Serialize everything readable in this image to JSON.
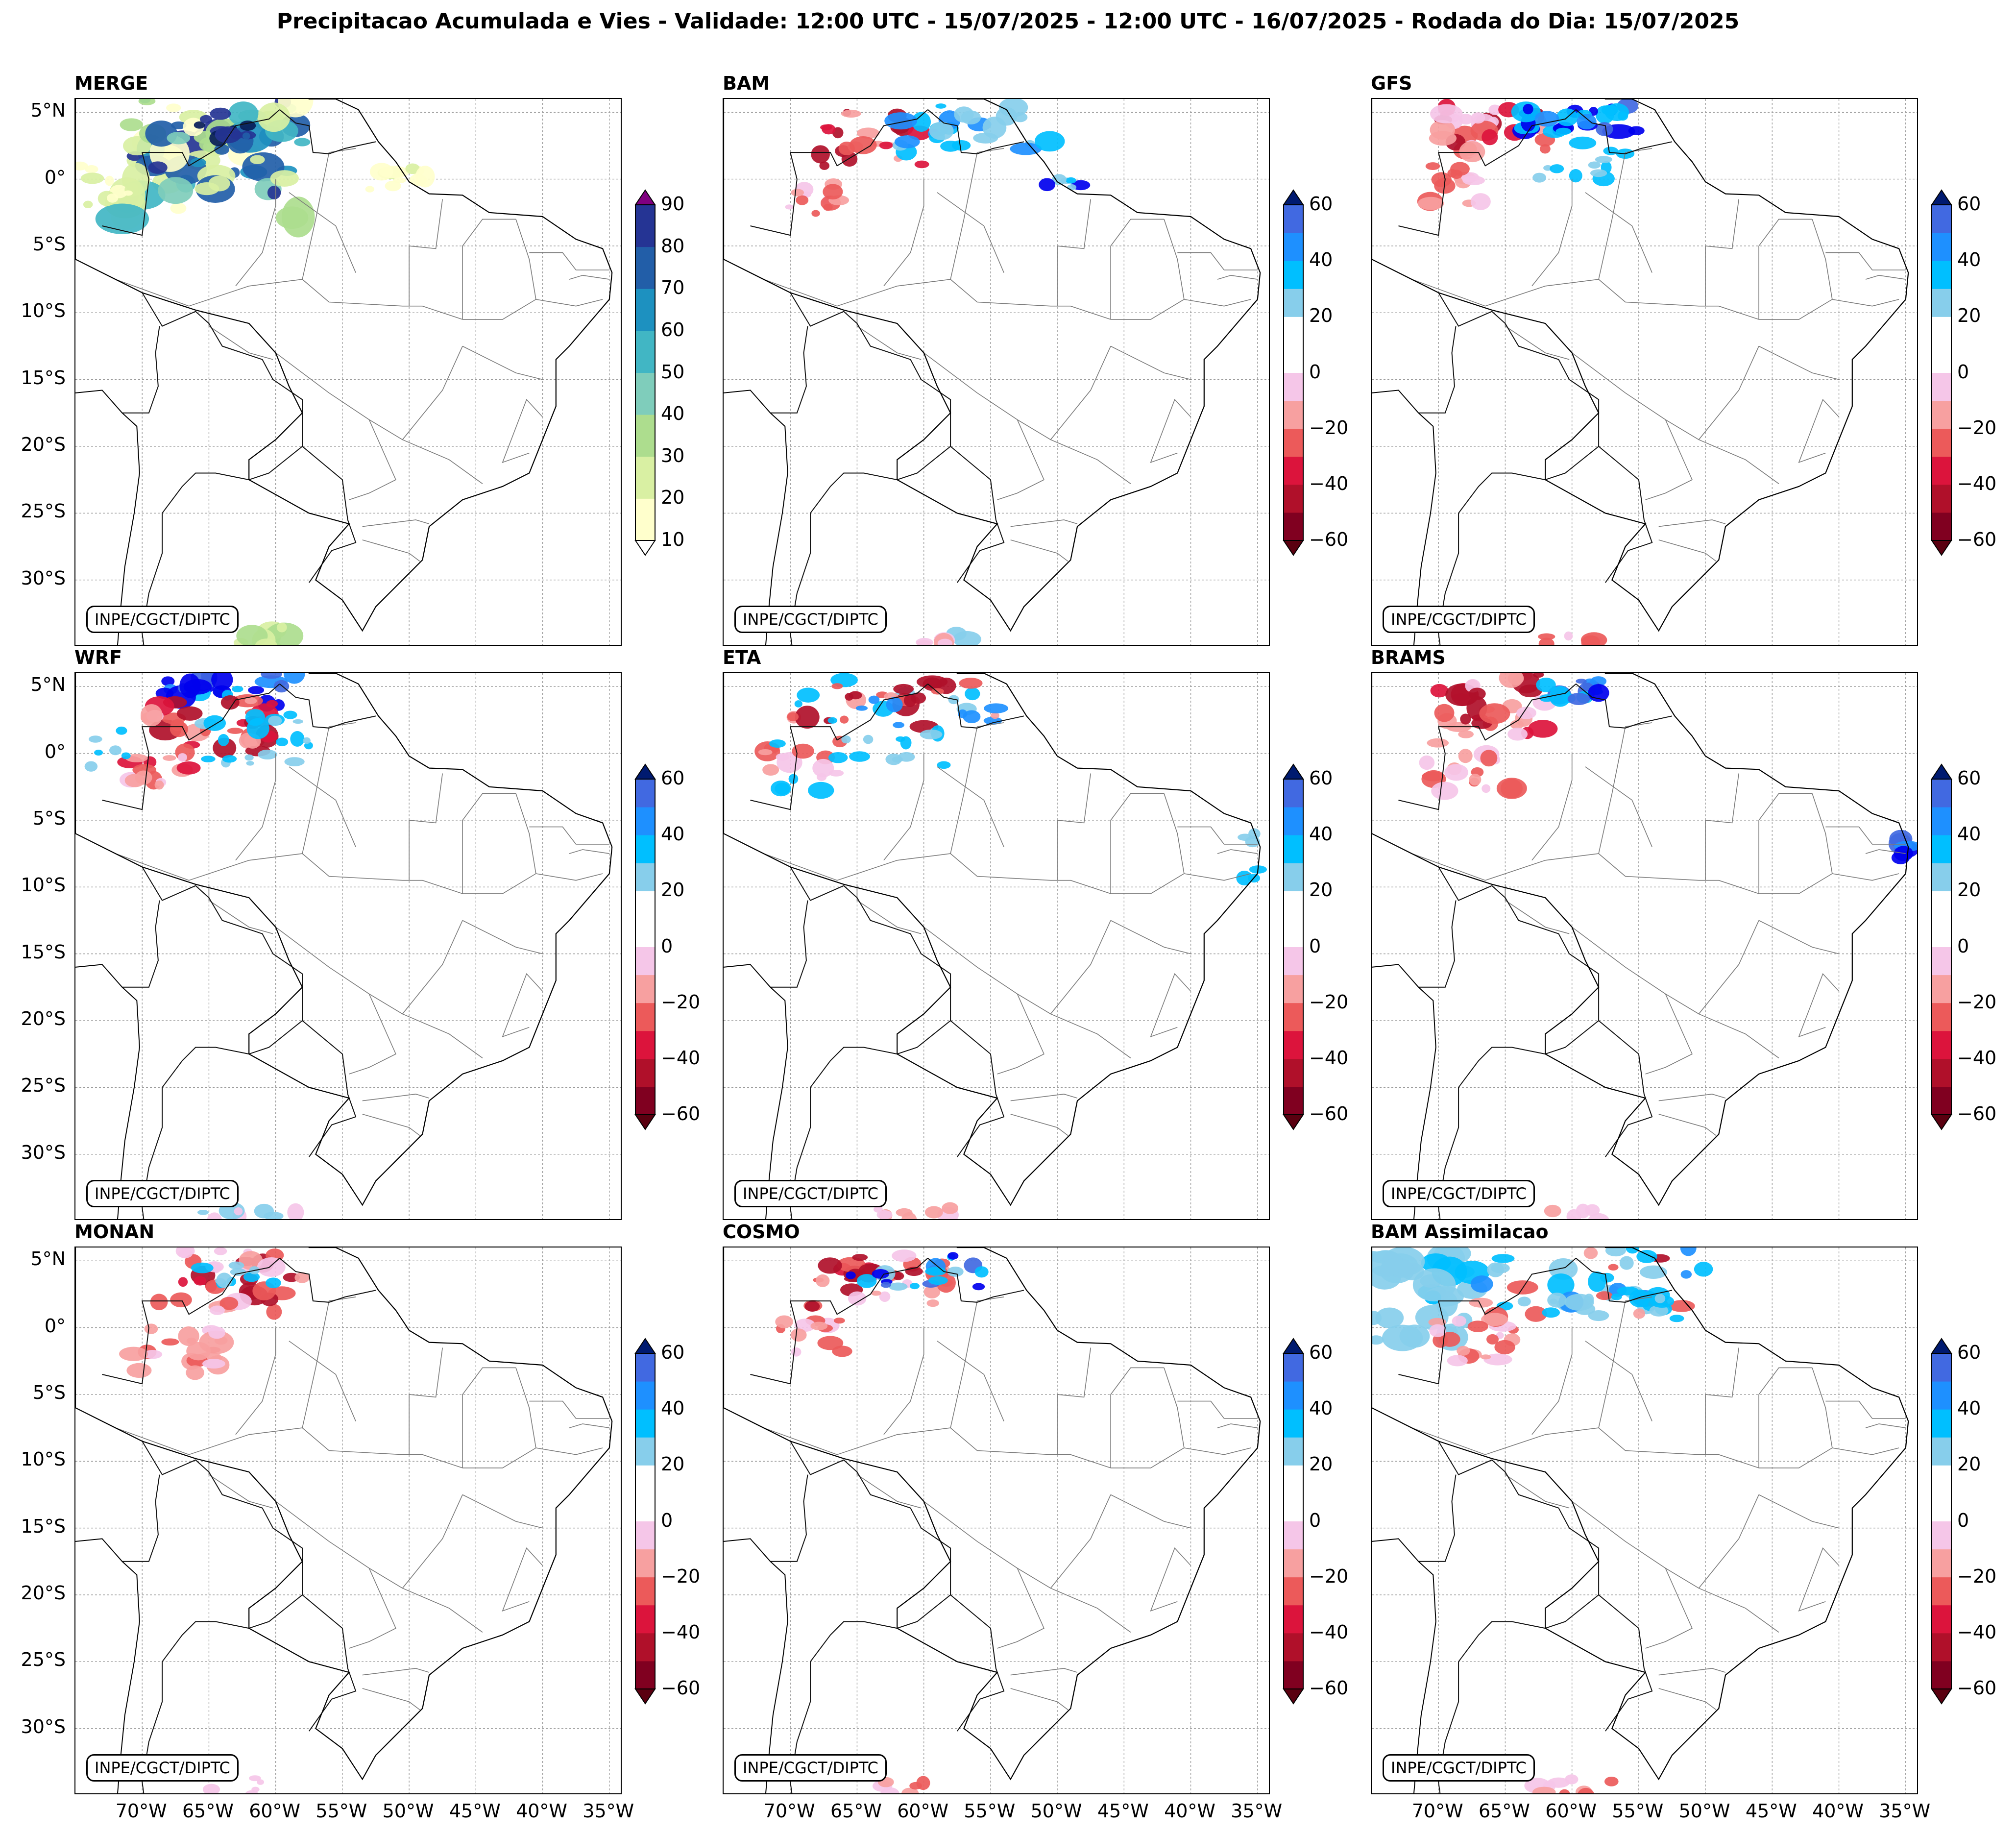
{
  "figure": {
    "title": "Precipitacao Acumulada e Vies - Validade: 12:00 UTC - 15/07/2025 - 12:00 UTC - 16/07/2025 - Rodada do Dia: 15/07/2025",
    "credit": "INPE/CGCT/DIPTC"
  },
  "lat_labels": [
    "5°N",
    "0°",
    "5°S",
    "10°S",
    "15°S",
    "20°S",
    "25°S",
    "30°S"
  ],
  "lon_labels": [
    "70°W",
    "65°W",
    "60°W",
    "55°W",
    "50°W",
    "45°W",
    "40°W",
    "35°W"
  ],
  "colors": {
    "merge": [
      "#ffffcc",
      "#d9f0a3",
      "#addd8e",
      "#7fcdbb",
      "#41b6c4",
      "#1d91c0",
      "#225ea8",
      "#253494",
      "#081d58"
    ],
    "merge_over": "#800080",
    "bias": [
      "#800020",
      "#b0102a",
      "#dc143c",
      "#ec5a5a",
      "#f7a0a0",
      "#f5c6e8",
      "#ffffff",
      "#ffffff",
      "#87ceeb",
      "#00bfff",
      "#1e90ff",
      "#4169e1",
      "#0000ee"
    ],
    "bias_over": "#0a1a5a"
  },
  "colorbars": {
    "merge_ticks": [
      "10",
      "20",
      "30",
      "40",
      "50",
      "60",
      "70",
      "80",
      "90"
    ],
    "bias_ticks": [
      "−60",
      "−40",
      "−20",
      "0",
      "20",
      "40",
      "60"
    ]
  },
  "panels": [
    {
      "name": "MERGE",
      "type": "merge"
    },
    {
      "name": "BAM",
      "type": "bias"
    },
    {
      "name": "GFS",
      "type": "bias"
    },
    {
      "name": "WRF",
      "type": "bias"
    },
    {
      "name": "ETA",
      "type": "bias"
    },
    {
      "name": "BRAMS",
      "type": "bias"
    },
    {
      "name": "MONAN",
      "type": "bias"
    },
    {
      "name": "COSMO",
      "type": "bias"
    },
    {
      "name": "BAM Assimilacao",
      "type": "bias"
    }
  ]
}
